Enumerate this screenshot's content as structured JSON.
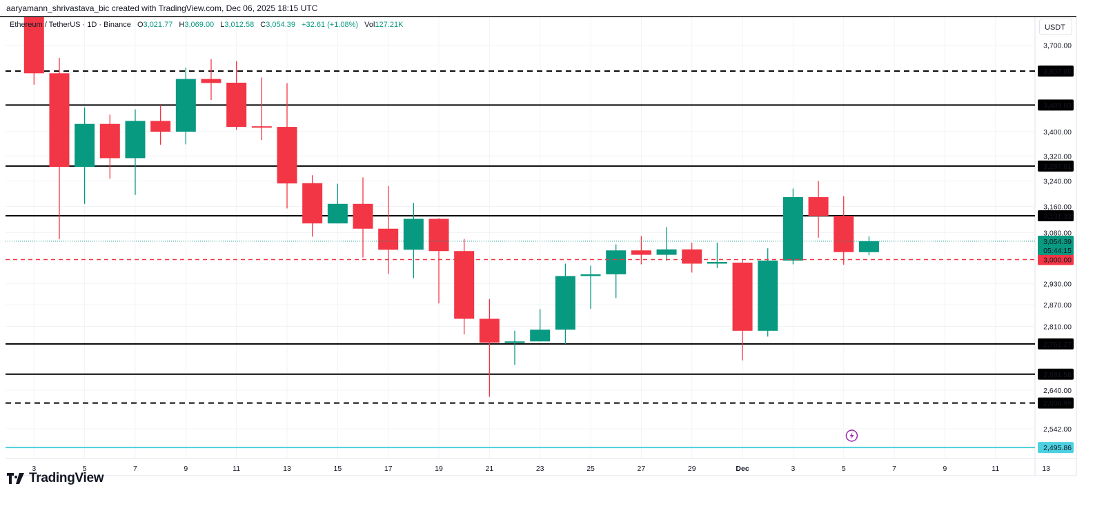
{
  "credit": "aaryamann_shrivastava_bic created with TradingView.com, Dec 06, 2025 18:15 UTC",
  "legend": {
    "symbol": "Ethereum / TetherUS · 1D · Binance",
    "open_label": "O",
    "open": "3,021.77",
    "high_label": "H",
    "high": "3,069.00",
    "low_label": "L",
    "low": "3,012.58",
    "close_label": "C",
    "close": "3,054.39",
    "change": "+32.61 (+1.08%)",
    "vol_label": "Vol",
    "vol": "127.21K"
  },
  "currency_button": "USDT",
  "brand": "TradingView",
  "countdown": "05:44:15",
  "colors": {
    "up": "#089981",
    "down": "#f23645",
    "level": "#000000",
    "alert": "#f23645",
    "last_price": "#089981",
    "bottom_line": "#4dd0e1",
    "event": "#9c27b0"
  },
  "event_icon": "lightning-icon",
  "chart_data": {
    "type": "candlestick",
    "scale": "log",
    "ylim": [
      2495.86,
      3700
    ],
    "grid": true,
    "y_ticks": [
      "3,700.00",
      "3,400.00",
      "3,320.00",
      "3,240.00",
      "3,160.00",
      "3,080.00",
      "2,930.00",
      "2,870.00",
      "2,810.00",
      "2,640.00",
      "2,542.00"
    ],
    "y_tick_values": [
      3700,
      3400,
      3320,
      3240,
      3160,
      3080,
      2930,
      2870,
      2810,
      2640,
      2542
    ],
    "x_ticks": [
      "3",
      "5",
      "7",
      "9",
      "11",
      "13",
      "15",
      "17",
      "19",
      "21",
      "23",
      "25",
      "27",
      "29",
      "Dec",
      "3",
      "5",
      "7",
      "9",
      "11",
      "13"
    ],
    "candles": [
      {
        "date": "Nov 3",
        "o": 3870,
        "h": 3920,
        "l": 3560,
        "c": 3600
      },
      {
        "date": "Nov 4",
        "o": 3600,
        "h": 3655,
        "l": 3060,
        "c": 3285
      },
      {
        "date": "Nov 5",
        "o": 3285,
        "h": 3482,
        "l": 3168,
        "c": 3426
      },
      {
        "date": "Nov 6",
        "o": 3426,
        "h": 3457,
        "l": 3247,
        "c": 3313
      },
      {
        "date": "Nov 7",
        "o": 3313,
        "h": 3475,
        "l": 3196,
        "c": 3436
      },
      {
        "date": "Nov 8",
        "o": 3436,
        "h": 3490,
        "l": 3357,
        "c": 3400
      },
      {
        "date": "Nov 9",
        "o": 3400,
        "h": 3620,
        "l": 3358,
        "c": 3580
      },
      {
        "date": "Nov 10",
        "o": 3580,
        "h": 3650,
        "l": 3507,
        "c": 3566
      },
      {
        "date": "Nov 11",
        "o": 3567,
        "h": 3643,
        "l": 3406,
        "c": 3416
      },
      {
        "date": "Nov 12",
        "o": 3418,
        "h": 3585,
        "l": 3372,
        "c": 3415
      },
      {
        "date": "Nov 13",
        "o": 3416,
        "h": 3565,
        "l": 3154,
        "c": 3232
      },
      {
        "date": "Nov 14",
        "o": 3233,
        "h": 3258,
        "l": 3068,
        "c": 3108
      },
      {
        "date": "Nov 15",
        "o": 3108,
        "h": 3231,
        "l": 3108,
        "c": 3168
      },
      {
        "date": "Nov 16",
        "o": 3168,
        "h": 3251,
        "l": 3006,
        "c": 3092
      },
      {
        "date": "Nov 17",
        "o": 3092,
        "h": 3224,
        "l": 2958,
        "c": 3029
      },
      {
        "date": "Nov 18",
        "o": 3029,
        "h": 3171,
        "l": 2946,
        "c": 3122
      },
      {
        "date": "Nov 19",
        "o": 3122,
        "h": 3124,
        "l": 2874,
        "c": 3025
      },
      {
        "date": "Nov 20",
        "o": 3025,
        "h": 3061,
        "l": 2788,
        "c": 2831
      },
      {
        "date": "Nov 21",
        "o": 2831,
        "h": 2886,
        "l": 2623,
        "c": 2766
      },
      {
        "date": "Nov 22",
        "o": 2766,
        "h": 2798,
        "l": 2706,
        "c": 2769
      },
      {
        "date": "Nov 23",
        "o": 2769,
        "h": 2858,
        "l": 2769,
        "c": 2801
      },
      {
        "date": "Nov 24",
        "o": 2801,
        "h": 2988,
        "l": 2762,
        "c": 2952
      },
      {
        "date": "Nov 25",
        "o": 2952,
        "h": 2982,
        "l": 2859,
        "c": 2957
      },
      {
        "date": "Nov 26",
        "o": 2957,
        "h": 3045,
        "l": 2889,
        "c": 3027
      },
      {
        "date": "Nov 27",
        "o": 3027,
        "h": 3070,
        "l": 2986,
        "c": 3014
      },
      {
        "date": "Nov 28",
        "o": 3014,
        "h": 3097,
        "l": 2997,
        "c": 3030
      },
      {
        "date": "Nov 29",
        "o": 3030,
        "h": 3050,
        "l": 2962,
        "c": 2988
      },
      {
        "date": "Nov 30",
        "o": 2988,
        "h": 3050,
        "l": 2975,
        "c": 2993
      },
      {
        "date": "Dec 1",
        "o": 2991,
        "h": 3000,
        "l": 2718,
        "c": 2798
      },
      {
        "date": "Dec 2",
        "o": 2798,
        "h": 3033,
        "l": 2782,
        "c": 2997
      },
      {
        "date": "Dec 3",
        "o": 2997,
        "h": 3216,
        "l": 2986,
        "c": 3189
      },
      {
        "date": "Dec 4",
        "o": 3189,
        "h": 3240,
        "l": 3065,
        "c": 3131
      },
      {
        "date": "Dec 5",
        "o": 3131,
        "h": 3192,
        "l": 2985,
        "c": 3022
      },
      {
        "date": "Dec 6",
        "o": 3021.77,
        "h": 3069.0,
        "l": 3012.58,
        "c": 3054.39
      }
    ],
    "levels": [
      {
        "price": 3607.85,
        "label": "3,607.85",
        "style": "dashed"
      },
      {
        "price": 3489.83,
        "label": "3,489.83",
        "style": "solid"
      },
      {
        "price": 3287.61,
        "label": "3,287.61",
        "style": "solid"
      },
      {
        "price": 3131.33,
        "label": "3,131.33",
        "style": "solid"
      },
      {
        "price": 2762.27,
        "label": "2,762.27",
        "style": "solid"
      },
      {
        "price": 2681.58,
        "label": "2,681.58",
        "style": "solid"
      },
      {
        "price": 2606.99,
        "label": "2,606.99",
        "style": "dashed"
      }
    ],
    "alert_line": {
      "price": 3000.0,
      "label": "3,000.00"
    },
    "last_price": {
      "price": 3054.39,
      "label": "3,054.39"
    },
    "bottom_line": {
      "price": 2495.86,
      "label": "2,495.86"
    }
  }
}
